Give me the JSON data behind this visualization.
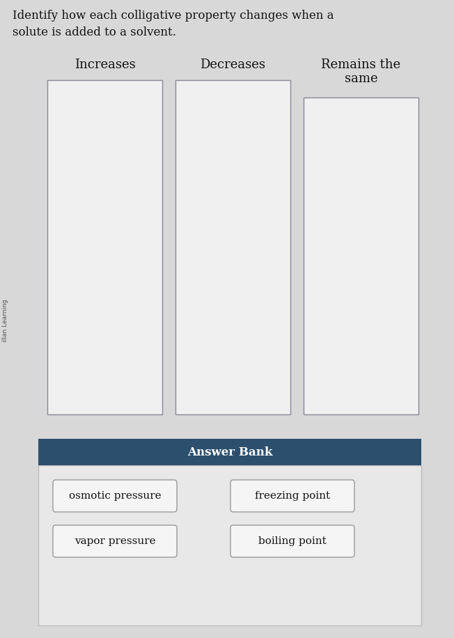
{
  "title_line1": "Identify how each colligative property changes when a",
  "title_line2": "solute is added to a solvent.",
  "sidebar_text": "illan Learning",
  "col_labels": [
    "Increases",
    "Decreases",
    "Remains the\nsame"
  ],
  "answer_bank_title": "Answer Bank",
  "answer_bank_items": [
    [
      "osmotic pressure",
      "freezing point"
    ],
    [
      "vapor pressure",
      "boiling point"
    ]
  ],
  "bg_color": "#c8c8c8",
  "main_bg_color": "#d8d8d8",
  "box_bg_color": "#f0f0f0",
  "box_border_color": "#888899",
  "answer_bank_header_color": "#2d4f6e",
  "answer_bank_bg_color": "#e8e8e8",
  "answer_item_border_color": "#999999",
  "answer_item_bg_color": "#f5f5f5",
  "title_fontsize": 12,
  "col_label_fontsize": 13,
  "answer_bank_title_fontsize": 12,
  "answer_item_fontsize": 11,
  "fig_width": 6.52,
  "fig_height": 9.16,
  "dpi": 100
}
